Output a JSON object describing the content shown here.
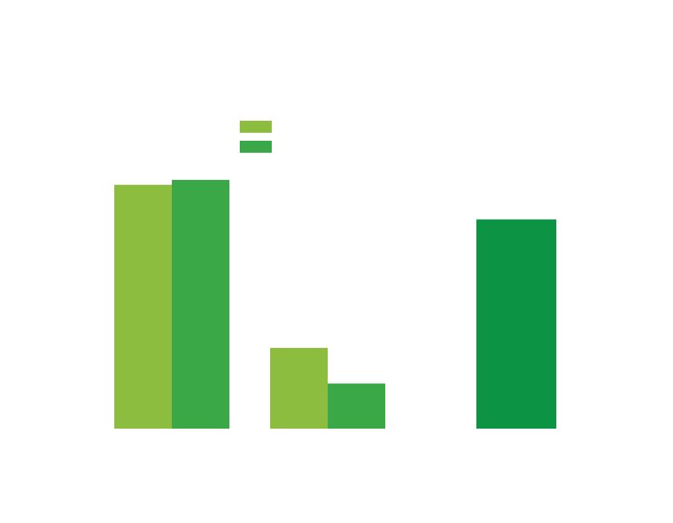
{
  "chart_data": {
    "type": "bar",
    "title": "",
    "xlabel": "",
    "ylabel": "",
    "ylim": [
      0,
      100
    ],
    "grid": false,
    "legend": "top-center",
    "groups": [
      {
        "values": [
          74,
          75.5
        ],
        "colors": [
          "#8cbd3f",
          "#3aa846"
        ]
      },
      {
        "values": [
          24.5,
          13.7
        ],
        "colors": [
          "#8cbd3f",
          "#3aa846"
        ]
      },
      {
        "values": [
          63.5
        ],
        "colors": [
          "#0c9444"
        ]
      }
    ],
    "series": [
      {
        "color": "#8cbd3f"
      },
      {
        "color": "#3aa846"
      }
    ]
  }
}
